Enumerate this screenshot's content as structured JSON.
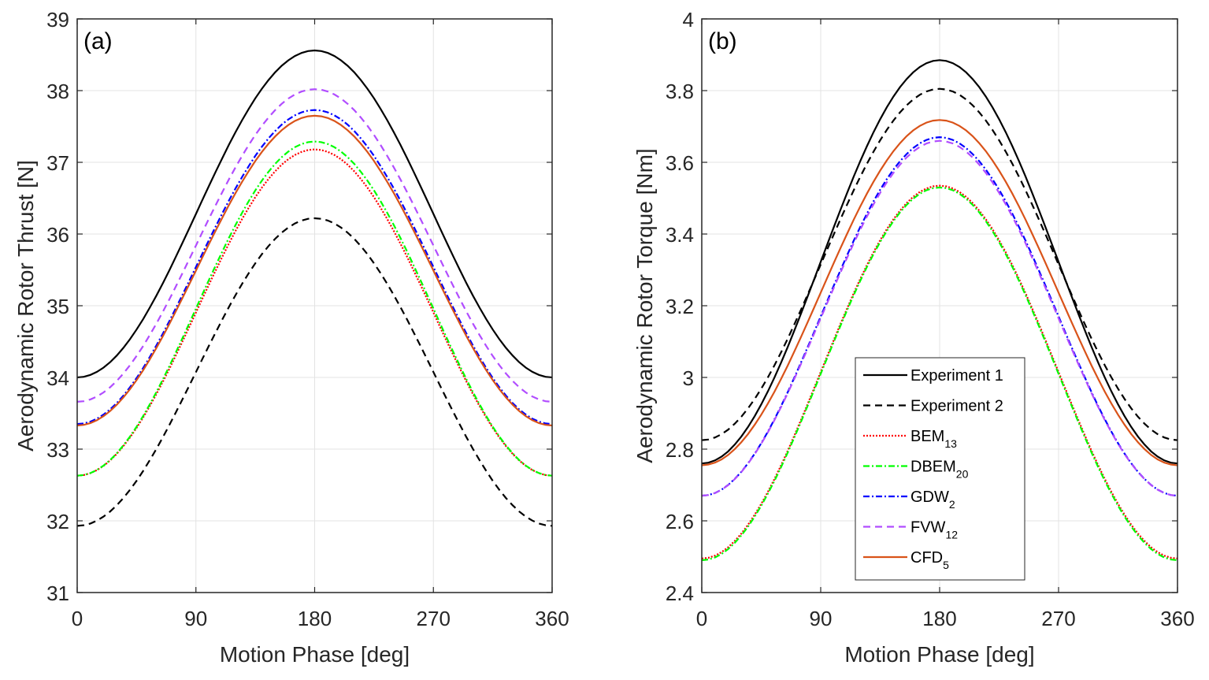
{
  "chart_data": [
    {
      "type": "line",
      "panel_label": "(a)",
      "title": "",
      "xlabel": "Motion Phase [deg]",
      "ylabel": "Aerodynamic Rotor Thrust [N]",
      "xlim": [
        0,
        360
      ],
      "ylim": [
        31,
        39
      ],
      "xticks": [
        "0",
        "90",
        "180",
        "270",
        "360"
      ],
      "yticks": [
        "31",
        "32",
        "33",
        "34",
        "35",
        "36",
        "37",
        "38",
        "39"
      ],
      "grid": true,
      "legend": false,
      "series": [
        {
          "name": "Experiment 1",
          "min": 34.0,
          "max": 38.56,
          "color": "#000000",
          "style": "solid"
        },
        {
          "name": "Experiment 2",
          "min": 31.93,
          "max": 36.22,
          "color": "#000000",
          "style": "dashed"
        },
        {
          "name": "BEM13",
          "min": 32.63,
          "max": 37.18,
          "color": "#ff0000",
          "style": "dotted"
        },
        {
          "name": "DBEM20",
          "min": 32.63,
          "max": 37.29,
          "color": "#00ff00",
          "style": "dashdot"
        },
        {
          "name": "GDW2",
          "min": 33.35,
          "max": 37.73,
          "color": "#0000ff",
          "style": "dashdot"
        },
        {
          "name": "FVW12",
          "min": 33.66,
          "max": 38.02,
          "color": "#b14dff",
          "style": "dashed"
        },
        {
          "name": "CFD5",
          "min": 33.33,
          "max": 37.65,
          "color": "#d95319",
          "style": "solid"
        }
      ],
      "note": "All series follow a cosine-shaped motion-phase curve: minimum at 0 and 360 deg, maximum at 180 deg"
    },
    {
      "type": "line",
      "panel_label": "(b)",
      "title": "",
      "xlabel": "Motion Phase [deg]",
      "ylabel": "Aerodynamic Rotor Torque [Nm]",
      "xlim": [
        0,
        360
      ],
      "ylim": [
        2.4,
        4.0
      ],
      "xticks": [
        "0",
        "90",
        "180",
        "270",
        "360"
      ],
      "yticks": [
        "2.4",
        "2.6",
        "2.8",
        "3",
        "3.2",
        "3.4",
        "3.6",
        "3.8",
        "4"
      ],
      "grid": true,
      "legend": true,
      "legend_position": "bottom-center",
      "series": [
        {
          "name": "Experiment 1",
          "min": 2.76,
          "max": 3.885,
          "color": "#000000",
          "style": "solid"
        },
        {
          "name": "Experiment 2",
          "min": 2.825,
          "max": 3.805,
          "color": "#000000",
          "style": "dashed"
        },
        {
          "name": "BEM13",
          "min": 2.495,
          "max": 3.535,
          "color": "#ff0000",
          "style": "dotted"
        },
        {
          "name": "DBEM20",
          "min": 2.49,
          "max": 3.53,
          "color": "#00ff00",
          "style": "dashdot"
        },
        {
          "name": "GDW2",
          "min": 2.67,
          "max": 3.67,
          "color": "#0000ff",
          "style": "dashdot"
        },
        {
          "name": "FVW12",
          "min": 2.67,
          "max": 3.66,
          "color": "#b14dff",
          "style": "dashed"
        },
        {
          "name": "CFD5",
          "min": 2.755,
          "max": 3.718,
          "color": "#d95319",
          "style": "solid"
        }
      ]
    }
  ],
  "legend": [
    {
      "base": "Experiment 1",
      "sub": "",
      "color": "#000000",
      "style": "solid"
    },
    {
      "base": "Experiment 2",
      "sub": "",
      "color": "#000000",
      "style": "dashed"
    },
    {
      "base": "BEM",
      "sub": "13",
      "color": "#ff0000",
      "style": "dotted"
    },
    {
      "base": "DBEM",
      "sub": "20",
      "color": "#00ff00",
      "style": "dashdot"
    },
    {
      "base": "GDW",
      "sub": "2",
      "color": "#0000ff",
      "style": "dashdot"
    },
    {
      "base": "FVW",
      "sub": "12",
      "color": "#b14dff",
      "style": "dashed"
    },
    {
      "base": "CFD",
      "sub": "5",
      "color": "#d95319",
      "style": "solid"
    }
  ]
}
